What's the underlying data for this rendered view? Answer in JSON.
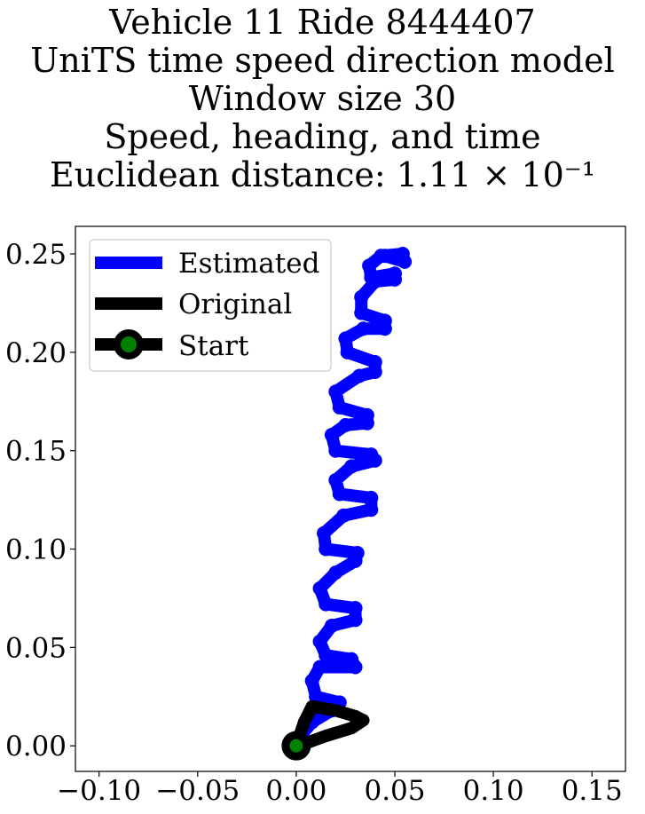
{
  "title_lines": [
    "Vehicle 11 Ride 8444407",
    "UniTS time speed direction model",
    "Window size 30",
    "Speed, heading, and time",
    "Euclidean distance: 1.11 × 10⁻¹"
  ],
  "chart_data": {
    "type": "line",
    "title": "Vehicle 11 Ride 8444407 / UniTS time speed direction model / Window size 30 / Speed, heading, and time / Euclidean distance: 1.11 × 10⁻¹",
    "xlabel": "",
    "ylabel": "",
    "xlim": [
      -0.112,
      0.167
    ],
    "ylim": [
      -0.013,
      0.264
    ],
    "x_ticks": [
      -0.1,
      -0.05,
      0.0,
      0.05,
      0.1,
      0.15
    ],
    "x_tick_labels": [
      "−0.10",
      "−0.05",
      "0.00",
      "0.05",
      "0.10",
      "0.15"
    ],
    "y_ticks": [
      0.0,
      0.05,
      0.1,
      0.15,
      0.2,
      0.25
    ],
    "y_tick_labels": [
      "0.00",
      "0.05",
      "0.10",
      "0.15",
      "0.20",
      "0.25"
    ],
    "grid": false,
    "legend_position": "upper-left",
    "legend": [
      "Estimated",
      "Original",
      "Start"
    ],
    "colors": {
      "estimated": "#0000ff",
      "original": "#000000",
      "start_fill": "#008000",
      "start_edge": "#000000"
    },
    "series": [
      {
        "name": "Estimated",
        "x": [
          0.0,
          0.003,
          0.008,
          0.018,
          0.022,
          0.01,
          0.008,
          0.012,
          0.03,
          0.028,
          0.015,
          0.012,
          0.018,
          0.03,
          0.03,
          0.015,
          0.012,
          0.02,
          0.03,
          0.031,
          0.015,
          0.014,
          0.024,
          0.038,
          0.038,
          0.022,
          0.02,
          0.028,
          0.04,
          0.038,
          0.02,
          0.018,
          0.025,
          0.036,
          0.036,
          0.022,
          0.02,
          0.032,
          0.04,
          0.04,
          0.026,
          0.025,
          0.034,
          0.045,
          0.045,
          0.033,
          0.033,
          0.04,
          0.05,
          0.05,
          0.038,
          0.037,
          0.043,
          0.054,
          0.055,
          0.045
        ],
        "y": [
          0.0,
          0.006,
          0.012,
          0.018,
          0.022,
          0.025,
          0.033,
          0.04,
          0.04,
          0.044,
          0.046,
          0.053,
          0.061,
          0.064,
          0.07,
          0.072,
          0.08,
          0.088,
          0.094,
          0.098,
          0.1,
          0.108,
          0.117,
          0.12,
          0.126,
          0.128,
          0.135,
          0.142,
          0.145,
          0.148,
          0.15,
          0.158,
          0.163,
          0.164,
          0.168,
          0.172,
          0.18,
          0.188,
          0.19,
          0.195,
          0.2,
          0.207,
          0.212,
          0.212,
          0.216,
          0.22,
          0.228,
          0.236,
          0.237,
          0.24,
          0.238,
          0.244,
          0.249,
          0.25,
          0.246,
          0.249
        ]
      },
      {
        "name": "Original",
        "x": [
          0.0,
          0.004,
          0.008,
          0.02,
          0.03,
          0.034,
          0.028,
          0.015,
          0.004,
          0.0
        ],
        "y": [
          0.0,
          0.012,
          0.02,
          0.018,
          0.015,
          0.013,
          0.009,
          0.005,
          0.001,
          0.0
        ]
      },
      {
        "name": "Start",
        "x": [
          0.0
        ],
        "y": [
          0.0
        ]
      }
    ]
  }
}
